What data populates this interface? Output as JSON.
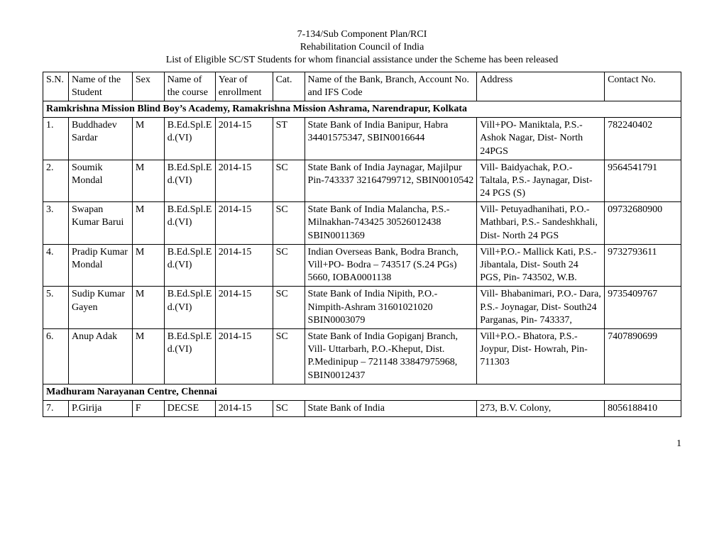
{
  "header": {
    "line1": "7-134/Sub Component Plan/RCI",
    "line2": "Rehabilitation Council of India",
    "line3": "List of Eligible SC/ST Students for whom financial assistance under the Scheme has been released"
  },
  "columns": {
    "sn": "S.N.",
    "name": "Name of the Student",
    "sex": "Sex",
    "course": "Name of the course",
    "year": "Year of enrollment",
    "cat": "Cat.",
    "bank": "Name of the Bank, Branch, Account No. and IFS Code",
    "address": "Address",
    "contact": "Contact No."
  },
  "section1": "Ramkrishna Mission Blind Boy’s Academy, Ramakrishna Mission Ashrama, Narendrapur, Kolkata",
  "rows": [
    {
      "sn": "1.",
      "name": "Buddhadev Sardar",
      "sex": "M",
      "course": "B.Ed.Spl.Ed.(VI)",
      "year": "2014-15",
      "cat": "ST",
      "bank": "State Bank of India\nBanipur, Habra\n34401575347, SBIN0016644",
      "address": "Vill+PO- Maniktala, P.S.- Ashok Nagar, Dist- North 24PGS",
      "contact": "782240402"
    },
    {
      "sn": "2.",
      "name": "Soumik Mondal",
      "sex": "M",
      "course": "B.Ed.Spl.Ed.(VI)",
      "year": "2014-15",
      "cat": "SC",
      "bank": "State Bank of India\nJaynagar, Majilpur Pin-743337\n32164799712, SBIN0010542",
      "address": "Vill- Baidyachak, P.O.- Taltala, P.S.- Jaynagar, Dist- 24 PGS (S)",
      "contact": "9564541791"
    },
    {
      "sn": "3.",
      "name": "Swapan Kumar Barui",
      "sex": "M",
      "course": "B.Ed.Spl.Ed.(VI)",
      "year": "2014-15",
      "cat": "SC",
      "bank": "State Bank of India\nMalancha, P.S.-Milnakhan-743425\n30526012438\nSBIN0011369",
      "address": "Vill- Petuyadhanihati, P.O.- Mathbari, P.S.- Sandeshkhali, Dist- North 24 PGS",
      "contact": "09732680900"
    },
    {
      "sn": "4.",
      "name": "Pradip Kumar Mondal",
      "sex": "M",
      "course": "B.Ed.Spl.Ed.(VI)",
      "year": "2014-15",
      "cat": "SC",
      "bank": "Indian Overseas Bank, Bodra Branch, Vill+PO-\nBodra – 743517 (S.24 PGs)\n5660, IOBA0001138",
      "address": "Vill+P.O.- Mallick Kati, P.S.- Jibantala, Dist- South 24 PGS, Pin- 743502, W.B.",
      "contact": "9732793611"
    },
    {
      "sn": "5.",
      "name": "Sudip Kumar Gayen",
      "sex": "M",
      "course": "B.Ed.Spl.Ed.(VI)",
      "year": "2014-15",
      "cat": "SC",
      "bank": "State Bank of India\nNipith, P.O.-Nimpith-Ashram\n31601021020\nSBIN0003079",
      "address": "Vill- Bhabanimari, P.O.- Dara, P.S.- Joynagar, Dist- South24 Parganas, Pin- 743337,",
      "contact": "9735409767"
    },
    {
      "sn": "6.",
      "name": "Anup Adak",
      "sex": "M",
      "course": "B.Ed.Spl.Ed.(VI)",
      "year": "2014-15",
      "cat": "SC",
      "bank": "State Bank of India\nGopiganj Branch, Vill- Uttarbarh, P.O.-Kheput, Dist. P.Medinipup – 721148\n33847975968, SBIN0012437",
      "address": "Vill+P.O.- Bhatora, P.S.- Joypur, Dist- Howrah, Pin- 711303",
      "contact": "7407890699"
    }
  ],
  "section2": "Madhuram Narayanan Centre, Chennai",
  "row7": {
    "sn": "7.",
    "name": "P.Girija",
    "sex": "F",
    "course": "DECSE",
    "year": "2014-15",
    "cat": "SC",
    "bank": "State Bank of India",
    "address": "273, B.V. Colony,",
    "contact": "8056188410"
  },
  "pageNumber": "1"
}
